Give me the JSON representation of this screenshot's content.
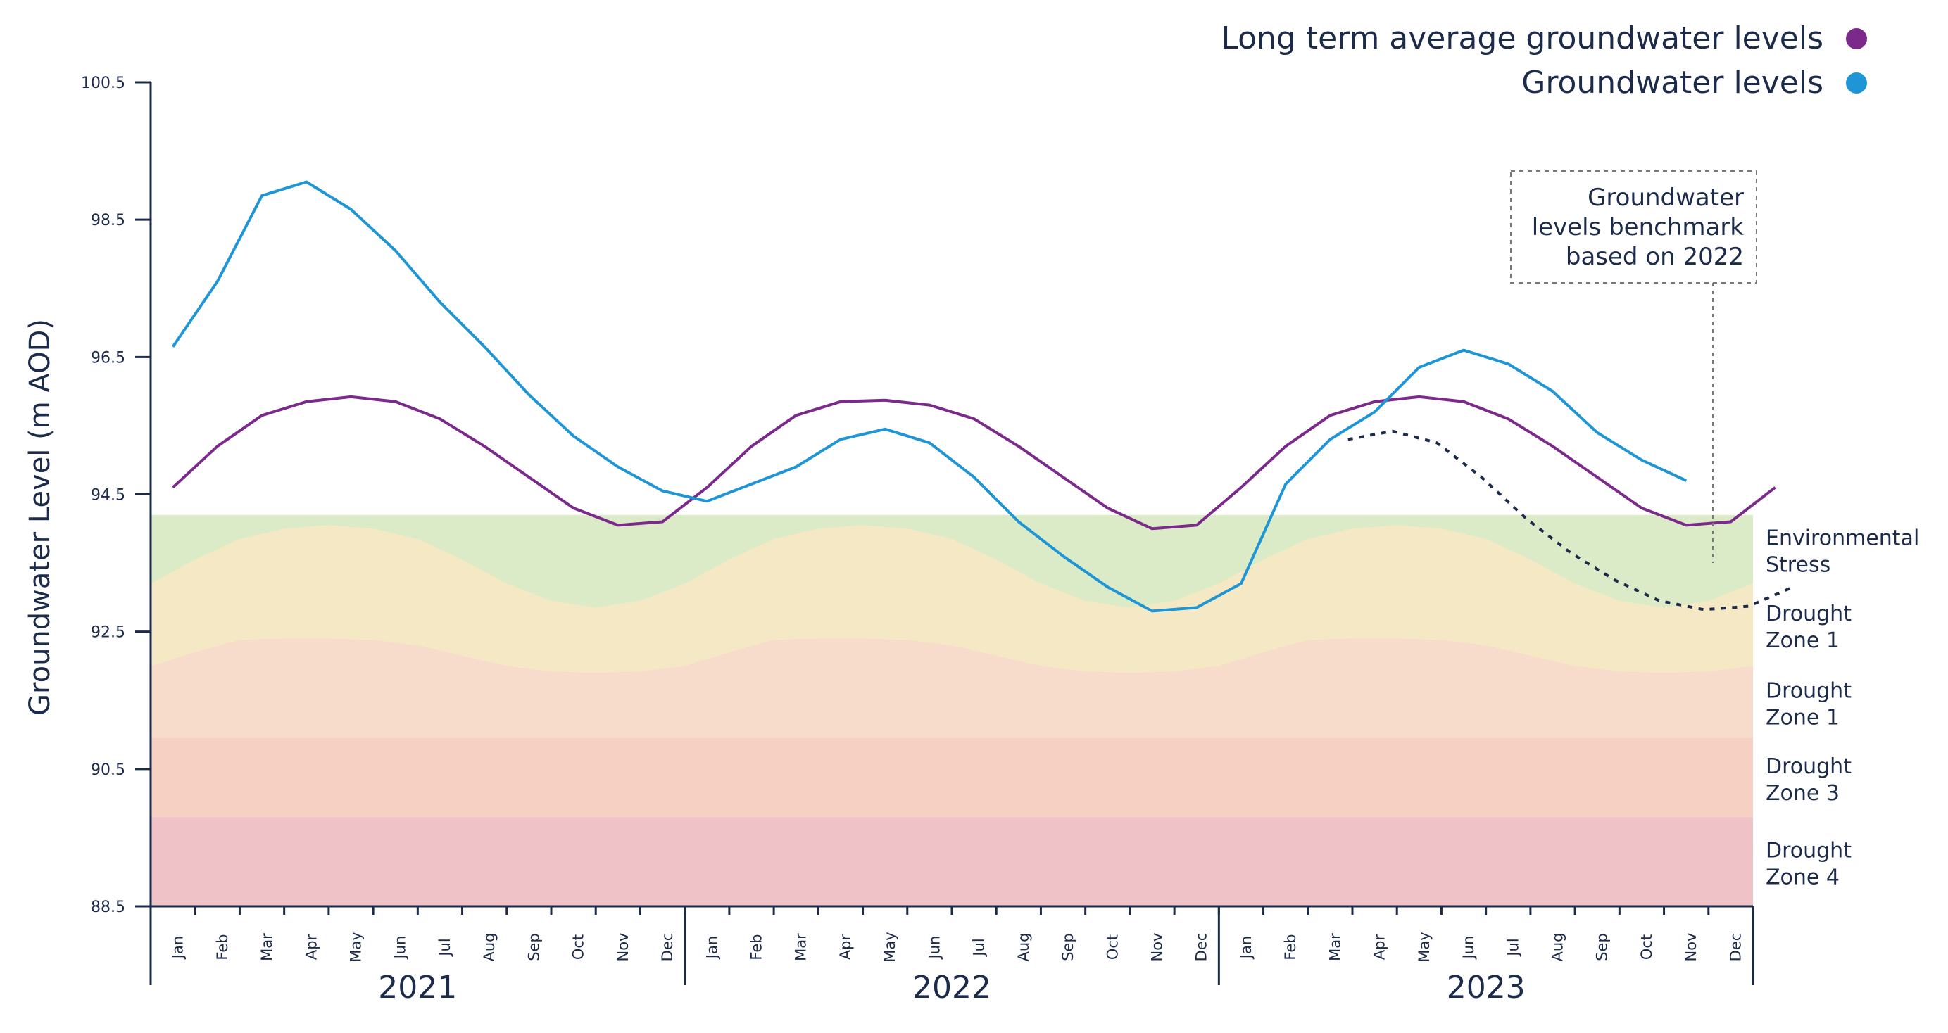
{
  "chart_data": {
    "type": "line",
    "ylabel": "Groundwater Level (m AOD)",
    "ylim": [
      88.5,
      100.5
    ],
    "yticks": [
      "100.5",
      "98.5",
      "96.5",
      "94.5",
      "92.5",
      "90.5",
      "88.5"
    ],
    "months": [
      "Jan",
      "Feb",
      "Mar",
      "Apr",
      "May",
      "Jun",
      "Jul",
      "Aug",
      "Sep",
      "Oct",
      "Nov",
      "Dec"
    ],
    "years": [
      "2021",
      "2022",
      "2023"
    ],
    "legend": [
      {
        "label": "Long term average groundwater levels",
        "color": "#7b2a8b"
      },
      {
        "label": "Groundwater levels",
        "color": "#1e96d6"
      }
    ],
    "annotation": [
      "Groundwater",
      "levels benchmark",
      "based on 2022"
    ],
    "series": [
      {
        "name": "Long term average groundwater levels",
        "color": "#7b2a8b",
        "x_start": 0,
        "values": [
          94.6,
          95.2,
          95.65,
          95.85,
          95.92,
          95.85,
          95.6,
          95.2,
          94.75,
          94.3,
          94.05,
          94.1,
          94.6,
          95.2,
          95.65,
          95.85,
          95.87,
          95.8,
          95.6,
          95.2,
          94.75,
          94.3,
          94.0,
          94.05,
          94.6,
          95.2,
          95.65,
          95.85,
          95.92,
          95.85,
          95.6,
          95.2,
          94.75,
          94.3,
          94.05,
          94.1,
          94.6
        ]
      },
      {
        "name": "Groundwater levels",
        "color": "#1e96d6",
        "x_start": 0,
        "values": [
          96.65,
          97.6,
          98.85,
          99.05,
          98.65,
          98.05,
          97.3,
          96.65,
          95.95,
          95.35,
          94.9,
          94.55,
          94.4,
          94.65,
          94.9,
          95.3,
          95.45,
          95.25,
          94.75,
          94.1,
          93.6,
          93.15,
          92.8,
          92.85,
          93.2,
          94.65,
          95.3,
          95.7,
          96.35,
          96.6,
          96.4,
          96.0,
          95.4,
          95.0,
          94.7
        ]
      },
      {
        "name": "",
        "color": "#1c2b4a",
        "dashed": true,
        "x_start": 26.4,
        "values": [
          95.3,
          95.42,
          95.25,
          94.75,
          94.15,
          93.65,
          93.25,
          92.95,
          92.82,
          92.87,
          93.15
        ]
      }
    ],
    "zones": [
      {
        "label": [
          "Environmental",
          "Stress"
        ],
        "color": "#dcebc7",
        "upper": [
          94.2,
          94.2,
          94.2,
          94.2,
          94.2,
          94.2,
          94.2,
          94.2,
          94.2,
          94.2,
          94.2,
          94.2,
          94.2,
          94.2,
          94.2,
          94.2,
          94.2,
          94.2,
          94.2,
          94.2,
          94.2,
          94.2,
          94.2,
          94.2,
          94.2,
          94.2,
          94.2,
          94.2,
          94.2,
          94.2,
          94.2,
          94.2,
          94.2,
          94.2,
          94.2,
          94.2,
          94.2
        ]
      },
      {
        "label": [
          "Drought",
          "Zone 1"
        ],
        "color": "#f5e8c4",
        "upper": [
          93.2,
          93.55,
          93.85,
          94.0,
          94.05,
          94.0,
          93.85,
          93.55,
          93.2,
          92.95,
          92.85,
          92.95,
          93.2,
          93.55,
          93.85,
          94.0,
          94.05,
          94.0,
          93.85,
          93.55,
          93.2,
          92.95,
          92.85,
          92.95,
          93.2,
          93.55,
          93.85,
          94.0,
          94.05,
          94.0,
          93.85,
          93.55,
          93.2,
          92.95,
          92.85,
          92.95,
          93.2
        ]
      },
      {
        "label": [
          "Drought",
          "Zone 1"
        ],
        "color": "#f8dccb",
        "upper": [
          92.0,
          92.2,
          92.38,
          92.4,
          92.4,
          92.38,
          92.3,
          92.15,
          92.0,
          91.92,
          91.9,
          91.92,
          92.0,
          92.2,
          92.38,
          92.4,
          92.4,
          92.38,
          92.3,
          92.15,
          92.0,
          91.92,
          91.9,
          91.92,
          92.0,
          92.2,
          92.38,
          92.4,
          92.4,
          92.38,
          92.3,
          92.15,
          92.0,
          91.92,
          91.9,
          91.92,
          92.0
        ]
      },
      {
        "label": [
          "Drought",
          "Zone 3"
        ],
        "color": "#f6d0c2",
        "upper": [
          90.95,
          90.95,
          90.95,
          90.95,
          90.95,
          90.95,
          90.95,
          90.95,
          90.95,
          90.95,
          90.95,
          90.95,
          90.95,
          90.95,
          90.95,
          90.95,
          90.95,
          90.95,
          90.95,
          90.95,
          90.95,
          90.95,
          90.95,
          90.95,
          90.95,
          90.95,
          90.95,
          90.95,
          90.95,
          90.95,
          90.95,
          90.95,
          90.95,
          90.95,
          90.95,
          90.95,
          90.95
        ]
      },
      {
        "label": [
          "Drought",
          "Zone 4"
        ],
        "color": "#efc2c8",
        "upper": [
          89.8,
          89.8,
          89.8,
          89.8,
          89.8,
          89.8,
          89.8,
          89.8,
          89.8,
          89.8,
          89.8,
          89.8,
          89.8,
          89.8,
          89.8,
          89.8,
          89.8,
          89.8,
          89.8,
          89.8,
          89.8,
          89.8,
          89.8,
          89.8,
          89.8,
          89.8,
          89.8,
          89.8,
          89.8,
          89.8,
          89.8,
          89.8,
          89.8,
          89.8,
          89.8,
          89.8,
          89.8
        ]
      }
    ]
  }
}
